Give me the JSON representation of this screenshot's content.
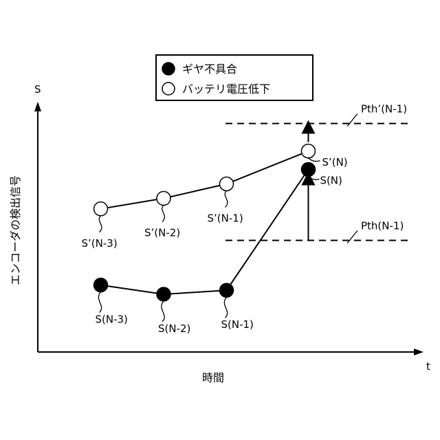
{
  "chart_data": {
    "type": "line",
    "xlabel": "時間",
    "ylabel": "エンコーダの検出信号",
    "x_axis_letter": "t",
    "y_axis_letter": "S",
    "xlim": [
      0,
      6
    ],
    "ylim": [
      0,
      10
    ],
    "legend": {
      "placement": "top-center",
      "entries": [
        {
          "label": "ギヤ不具合",
          "marker": "filled-circle"
        },
        {
          "label": "バッテリ電圧低下",
          "marker": "open-circle"
        }
      ]
    },
    "series": [
      {
        "name": "ギヤ不具合",
        "marker": "filled-circle",
        "x": [
          1,
          2,
          3,
          4.3
        ],
        "y": [
          2.55,
          2.2,
          2.35,
          6.95
        ],
        "point_labels": [
          "S(N-3)",
          "S(N-2)",
          "S(N-1)",
          "S(N)"
        ]
      },
      {
        "name": "バッテリ電圧低下",
        "marker": "open-circle",
        "x": [
          1,
          2,
          3,
          4.3
        ],
        "y": [
          5.45,
          5.85,
          6.4,
          7.65
        ],
        "point_labels": [
          "S’(N-3)",
          "S’(N-2)",
          "S’(N-1)",
          "S’(N)"
        ]
      }
    ],
    "thresholds": [
      {
        "label": "Pth(N-1)",
        "y": 4.25,
        "style": "dashed"
      },
      {
        "label": "Pth’(N-1)",
        "y": 8.7,
        "style": "dashed"
      }
    ],
    "grid": false
  }
}
